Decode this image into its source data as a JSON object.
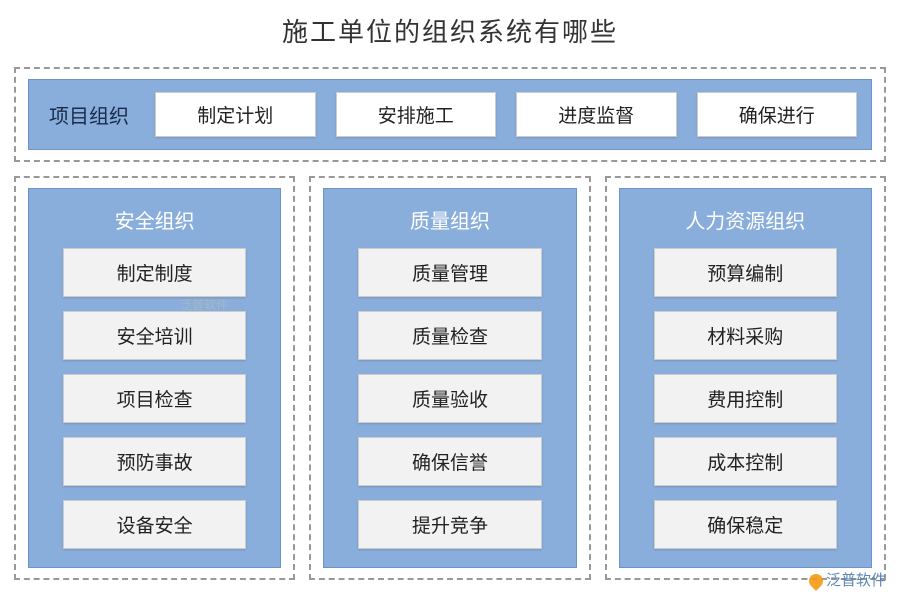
{
  "title": "施工单位的组织系统有哪些",
  "colors": {
    "panel_bg": "#8aaedc",
    "panel_border": "#6b94c8",
    "dashed_border": "#999999",
    "pill_bg": "#ffffff",
    "item_bg": "#f2f2f2",
    "text_dark": "#222222",
    "text_header_top": "#1a2a4a",
    "text_header_col": "#ffffff",
    "page_bg": "#ffffff"
  },
  "typography": {
    "title_fontsize": 26,
    "panel_label_fontsize": 20,
    "pill_fontsize": 19,
    "col_header_fontsize": 20,
    "col_item_fontsize": 19
  },
  "top_section": {
    "label": "项目组织",
    "items": [
      "制定计划",
      "安排施工",
      "进度监督",
      "确保进行"
    ]
  },
  "columns": [
    {
      "header": "安全组织",
      "items": [
        "制定制度",
        "安全培训",
        "项目检查",
        "预防事故",
        "设备安全"
      ]
    },
    {
      "header": "质量组织",
      "items": [
        "质量管理",
        "质量检查",
        "质量验收",
        "确保信誉",
        "提升竞争"
      ]
    },
    {
      "header": "人力资源组织",
      "items": [
        "预算编制",
        "材料采购",
        "费用控制",
        "成本控制",
        "确保稳定"
      ]
    }
  ],
  "watermarks": {
    "mid": "泛普软件",
    "bottom": "泛普软件"
  }
}
